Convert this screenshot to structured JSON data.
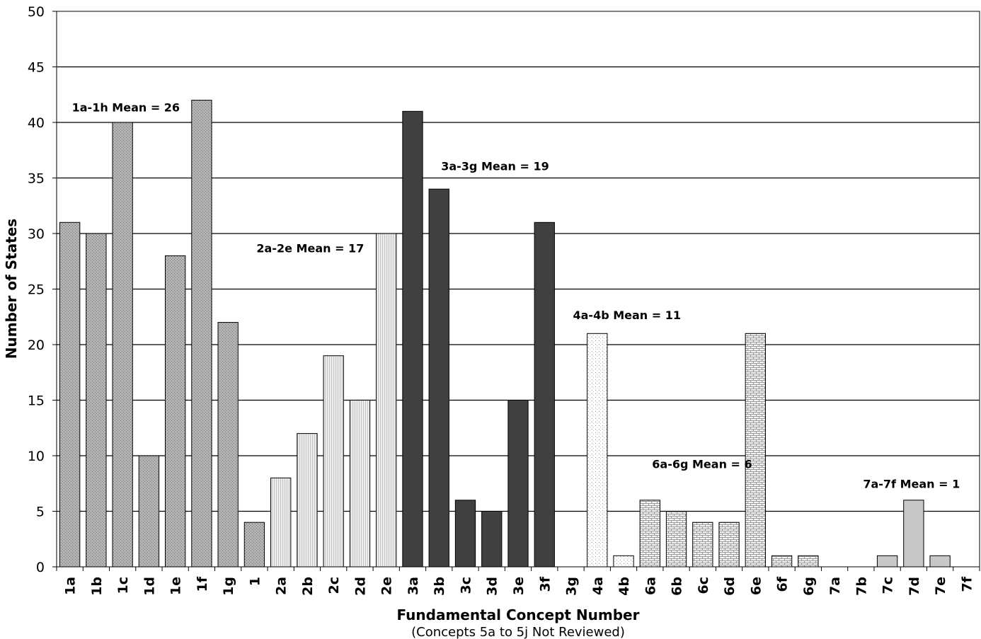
{
  "chart_data": {
    "type": "bar",
    "xlabel": "Fundamental Concept Number",
    "xlabel_note": "(Concepts 5a to 5j Not Reviewed)",
    "ylabel": "Number of States",
    "ylim": [
      0,
      50
    ],
    "yticks": [
      0,
      5,
      10,
      15,
      20,
      25,
      30,
      35,
      40,
      45,
      50
    ],
    "grid": "horizontal",
    "categories": [
      "1a",
      "1b",
      "1c",
      "1d",
      "1e",
      "1f",
      "1g",
      "1",
      "2a",
      "2b",
      "2c",
      "2d",
      "2e",
      "3a",
      "3b",
      "3c",
      "3d",
      "3e",
      "3f",
      "3g",
      "4a",
      "4b",
      "6a",
      "6b",
      "6c",
      "6d",
      "6e",
      "6f",
      "6g",
      "7a",
      "7b",
      "7c",
      "7d",
      "7e",
      "7f"
    ],
    "values": [
      31,
      30,
      40,
      10,
      28,
      42,
      22,
      4,
      8,
      12,
      19,
      15,
      30,
      41,
      34,
      6,
      5,
      15,
      31,
      0,
      21,
      1,
      6,
      5,
      4,
      4,
      21,
      1,
      1,
      0,
      0,
      1,
      6,
      1,
      0
    ],
    "groups": [
      {
        "name": "1",
        "start": 0,
        "end": 7,
        "fill": "#a9a9a9",
        "pattern": "fine-dots"
      },
      {
        "name": "2",
        "start": 8,
        "end": 12,
        "fill": "#e6e6e6",
        "pattern": "vertical-lines"
      },
      {
        "name": "3",
        "start": 13,
        "end": 19,
        "fill": "#404040",
        "pattern": "solid"
      },
      {
        "name": "4",
        "start": 20,
        "end": 21,
        "fill": "#ffffff",
        "pattern": "sparse-dots"
      },
      {
        "name": "6",
        "start": 22,
        "end": 28,
        "fill": "#f2f2f2",
        "pattern": "bricks"
      },
      {
        "name": "7",
        "start": 29,
        "end": 34,
        "fill": "#c8c8c8",
        "pattern": "solid"
      }
    ],
    "annotations": [
      {
        "text": "1a-1h Mean = 26",
        "at_category": "1a",
        "y": 41
      },
      {
        "text": "2a-2e Mean = 17",
        "at_category": "1",
        "y": 28.3
      },
      {
        "text": "3a-3g Mean = 19",
        "at_category": "3b",
        "y": 35.7
      },
      {
        "text": "4a-4b Mean = 11",
        "at_category": "3g",
        "y": 22.3
      },
      {
        "text": "6a-6g Mean = 6",
        "at_category": "6a",
        "y": 8.9
      },
      {
        "text": "7a-7f Mean = 1",
        "at_category": "7b",
        "y": 7.1
      }
    ]
  }
}
